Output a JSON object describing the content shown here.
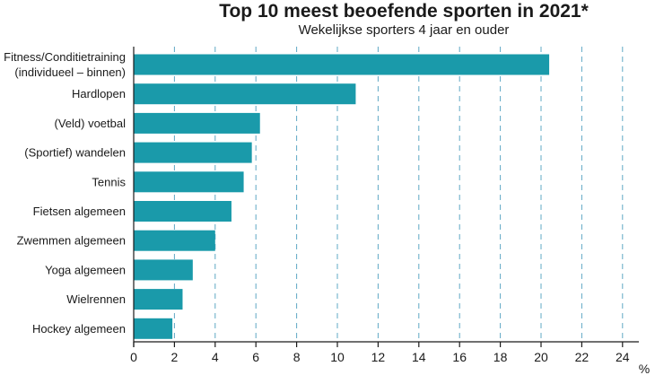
{
  "chart_data": {
    "type": "bar",
    "orientation": "horizontal",
    "title": "Top 10 meest beoefende sporten in 2021*",
    "subtitle": "Wekelijkse sporters 4 jaar en ouder",
    "categories": [
      [
        "Fitness/Conditietraining",
        "(individueel – binnen)"
      ],
      [
        "Hardlopen"
      ],
      [
        "(Veld) voetbal"
      ],
      [
        "(Sportief) wandelen"
      ],
      [
        "Tennis"
      ],
      [
        "Fietsen algemeen"
      ],
      [
        "Zwemmen algemeen"
      ],
      [
        "Yoga algemeen"
      ],
      [
        "Wielrennen"
      ],
      [
        "Hockey algemeen"
      ]
    ],
    "values": [
      20.4,
      10.9,
      6.2,
      5.8,
      5.4,
      4.8,
      4.0,
      2.9,
      2.4,
      1.9
    ],
    "xlim": [
      0,
      25
    ],
    "xticks": [
      0,
      2,
      4,
      6,
      8,
      10,
      12,
      14,
      16,
      18,
      20,
      22,
      24
    ],
    "xunit": "%",
    "grid": "vertical dashed",
    "colors": {
      "bar": "#1a9aaa",
      "grid": "#5fa8c4",
      "axis": "#1a1a1a"
    }
  }
}
